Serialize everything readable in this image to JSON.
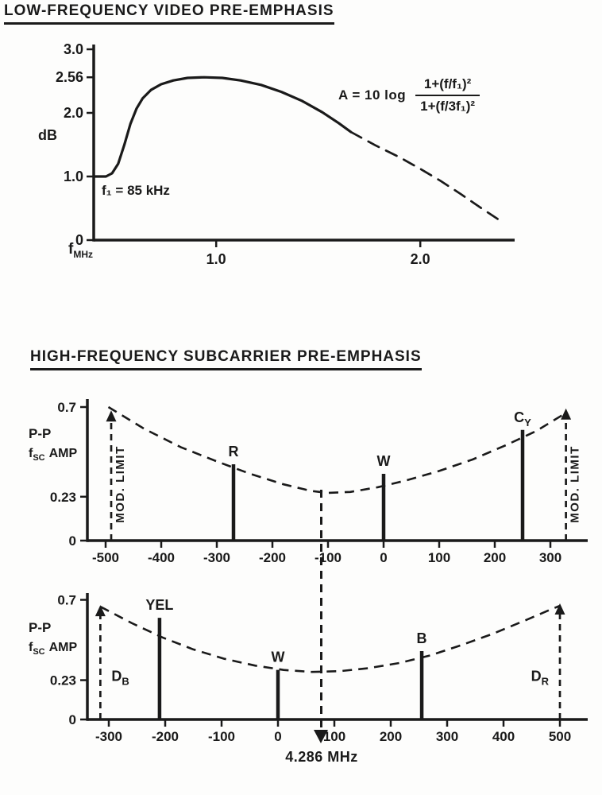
{
  "ink": "#1a1a1a",
  "section1_title": "LOW-FREQUENCY VIDEO PRE-EMPHASIS",
  "section2_title": "HIGH-FREQUENCY SUBCARRIER PRE-EMPHASIS",
  "formula": {
    "prefix": "A = 10 log",
    "numerator": "1+(f/f₁)²",
    "denominator": "1+(f/3f₁)²"
  },
  "lf_labels": {
    "ylabel": "dB",
    "xlabel_main": "f",
    "xlabel_sub": "MHz",
    "annotation": "f₁ = 85 kHz"
  },
  "hf_labels": {
    "line1": "P-P",
    "f": "f",
    "f_sub": "SC",
    "amp": "AMP"
  },
  "marker_label": "4.286 MHz",
  "chart_data": [
    {
      "id": "lf",
      "type": "line",
      "title": "LOW-FREQUENCY VIDEO PRE-EMPHASIS",
      "ylabel": "dB",
      "xlabel": "f MHz",
      "annotation": "f₁ = 85 kHz",
      "formula_text": "A = 10 log [1+(f/f₁)²] / [1+(f/3f₁)²]",
      "xlim": [
        0.4,
        2.45
      ],
      "ylim": [
        0,
        3.05
      ],
      "grid": false,
      "xticks": [
        {
          "v": 1.0,
          "label": "1.0"
        },
        {
          "v": 2.0,
          "label": "2.0"
        }
      ],
      "yticks": [
        {
          "v": 3.0,
          "label": "3.0"
        },
        {
          "v": 2.56,
          "label": "2.56"
        },
        {
          "v": 2.0,
          "label": "2.0"
        },
        {
          "v": 1.0,
          "label": "1.0"
        },
        {
          "v": 0,
          "label": "0"
        }
      ],
      "peak_db": 2.56,
      "series": [
        {
          "name": "pre-emphasis curve (solid)",
          "style": "solid",
          "points": [
            [
              0.4,
              1.0
            ],
            [
              0.46,
              1.0
            ],
            [
              0.49,
              1.05
            ],
            [
              0.52,
              1.2
            ],
            [
              0.55,
              1.5
            ],
            [
              0.58,
              1.83
            ],
            [
              0.61,
              2.07
            ],
            [
              0.64,
              2.23
            ],
            [
              0.68,
              2.36
            ],
            [
              0.73,
              2.45
            ],
            [
              0.79,
              2.51
            ],
            [
              0.86,
              2.55
            ],
            [
              0.94,
              2.56
            ],
            [
              1.03,
              2.55
            ],
            [
              1.12,
              2.51
            ],
            [
              1.22,
              2.44
            ],
            [
              1.32,
              2.33
            ],
            [
              1.42,
              2.19
            ],
            [
              1.52,
              2.01
            ],
            [
              1.6,
              1.84
            ],
            [
              1.66,
              1.7
            ]
          ]
        },
        {
          "name": "pre-emphasis curve (dashed extension)",
          "style": "dashed",
          "points": [
            [
              1.66,
              1.7
            ],
            [
              1.78,
              1.49
            ],
            [
              1.9,
              1.3
            ],
            [
              2.0,
              1.12
            ],
            [
              2.1,
              0.93
            ],
            [
              2.2,
              0.72
            ],
            [
              2.3,
              0.5
            ],
            [
              2.38,
              0.33
            ]
          ]
        }
      ]
    },
    {
      "id": "hf1",
      "type": "stem",
      "ylabel": "P-P fSC AMP",
      "xlim": [
        -525,
        365
      ],
      "ylim": [
        0,
        0.74
      ],
      "xticks": [
        -500,
        -400,
        -300,
        -200,
        -100,
        0,
        100,
        200,
        300
      ],
      "yticks": [
        {
          "v": 0.7,
          "label": "0.7"
        },
        {
          "v": 0.23,
          "label": "0.23"
        },
        {
          "v": 0,
          "label": "0"
        }
      ],
      "stems": [
        {
          "name": "mod-limit-left",
          "x": -490,
          "y": 0.67,
          "style": "dashed-arrow",
          "label": "MOD. LIMIT",
          "rotated": true
        },
        {
          "name": "R",
          "x": -270,
          "y": 0.4,
          "style": "solid",
          "label": "R"
        },
        {
          "name": "W",
          "x": 0,
          "y": 0.35,
          "style": "solid",
          "label": "W"
        },
        {
          "name": "CY",
          "x": 250,
          "y": 0.58,
          "style": "solid",
          "label": "C",
          "sub": "Y"
        },
        {
          "name": "mod-limit-right",
          "x": 328,
          "y": 0.68,
          "style": "dashed-arrow",
          "label": "MOD. LIMIT",
          "rotated": true
        }
      ],
      "envelope": [
        [
          -495,
          0.7
        ],
        [
          -430,
          0.585
        ],
        [
          -365,
          0.49
        ],
        [
          -300,
          0.415
        ],
        [
          -240,
          0.35
        ],
        [
          -180,
          0.295
        ],
        [
          -130,
          0.26
        ],
        [
          -100,
          0.25
        ],
        [
          -60,
          0.255
        ],
        [
          -10,
          0.28
        ],
        [
          40,
          0.315
        ],
        [
          100,
          0.365
        ],
        [
          160,
          0.425
        ],
        [
          220,
          0.5
        ],
        [
          275,
          0.575
        ],
        [
          320,
          0.655
        ],
        [
          330,
          0.675
        ]
      ],
      "marker_x": -111
    },
    {
      "id": "hf2",
      "type": "stem",
      "ylabel": "P-P fSC AMP",
      "xlim": [
        -340,
        550
      ],
      "ylim": [
        0,
        0.74
      ],
      "xticks": [
        -300,
        -200,
        -100,
        0,
        100,
        200,
        300,
        400,
        500
      ],
      "yticks": [
        {
          "v": 0.7,
          "label": "0.7"
        },
        {
          "v": 0.23,
          "label": "0.23"
        },
        {
          "v": 0,
          "label": "0"
        }
      ],
      "stems": [
        {
          "name": "DB",
          "x": -315,
          "y": 0.655,
          "style": "dashed-arrow",
          "label": "D",
          "sub": "B",
          "ldx": 14,
          "anchor": "start",
          "ly": 0.225
        },
        {
          "name": "YEL",
          "x": -210,
          "y": 0.595,
          "style": "solid",
          "label": "YEL"
        },
        {
          "name": "W",
          "x": 0,
          "y": 0.29,
          "style": "solid",
          "label": "W"
        },
        {
          "name": "B",
          "x": 255,
          "y": 0.4,
          "style": "solid",
          "label": "B"
        },
        {
          "name": "DR",
          "x": 500,
          "y": 0.665,
          "style": "dashed-arrow",
          "label": "D",
          "sub": "R",
          "ldx": -14,
          "anchor": "end",
          "ly": 0.225
        }
      ],
      "envelope": [
        [
          -315,
          0.66
        ],
        [
          -260,
          0.565
        ],
        [
          -205,
          0.48
        ],
        [
          -150,
          0.41
        ],
        [
          -95,
          0.355
        ],
        [
          -40,
          0.315
        ],
        [
          10,
          0.29
        ],
        [
          60,
          0.278
        ],
        [
          110,
          0.283
        ],
        [
          160,
          0.3
        ],
        [
          215,
          0.33
        ],
        [
          270,
          0.375
        ],
        [
          325,
          0.435
        ],
        [
          380,
          0.5
        ],
        [
          435,
          0.575
        ],
        [
          485,
          0.645
        ],
        [
          500,
          0.665
        ]
      ],
      "marker_x": 77,
      "marker_label": "4.286 MHz"
    }
  ]
}
